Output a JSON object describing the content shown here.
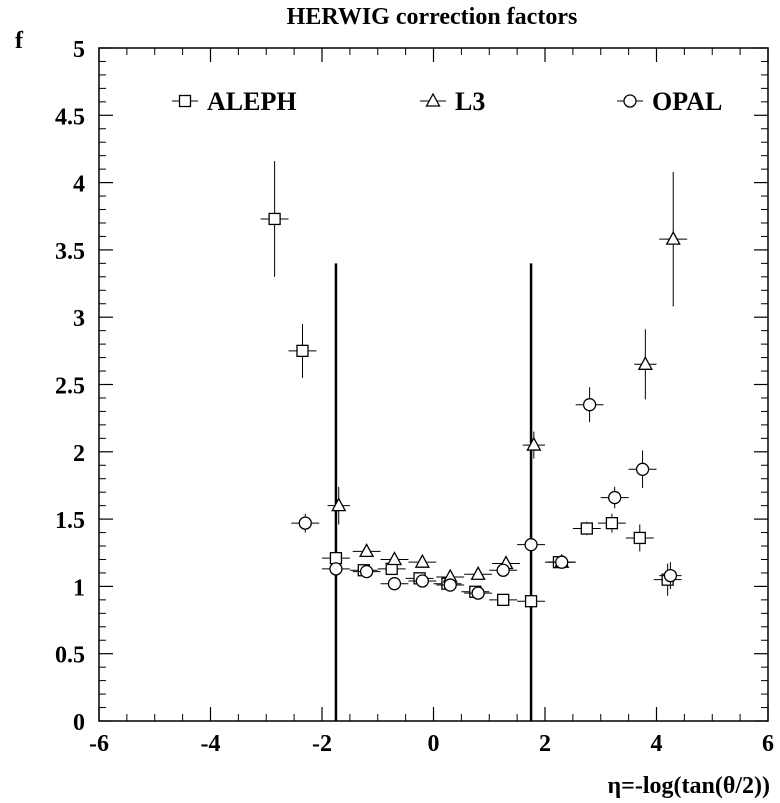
{
  "chart_data": {
    "type": "scatter",
    "title": "HERWIG correction factors",
    "xlabel": "η=-log(tan(θ/2))",
    "ylabel": "f",
    "xlim": [
      -6,
      6
    ],
    "ylim": [
      0,
      5
    ],
    "x_ticks": [
      -6,
      -4,
      -2,
      0,
      2,
      4,
      6
    ],
    "x_tick_labels": [
      "-6",
      "-4",
      "-2",
      "0",
      "2",
      "4",
      "6"
    ],
    "y_ticks": [
      0,
      0.5,
      1,
      1.5,
      2,
      2.5,
      3,
      3.5,
      4,
      4.5,
      5
    ],
    "y_tick_labels": [
      "0",
      "0.5",
      "1",
      "1.5",
      "2",
      "2.5",
      "3",
      "3.5",
      "4",
      "4.5",
      "5"
    ],
    "legend_position": "top",
    "vertical_lines": [
      {
        "x": -1.75,
        "y_top": 3.4
      },
      {
        "x": 1.75,
        "y_top": 3.4
      }
    ],
    "series": [
      {
        "name": "ALEPH",
        "marker": "square",
        "points": [
          {
            "x": -2.85,
            "y": 3.73,
            "xerr": 0.25,
            "yerr": 0.43
          },
          {
            "x": -2.35,
            "y": 2.75,
            "xerr": 0.25,
            "yerr": 0.2
          },
          {
            "x": -1.75,
            "y": 1.21,
            "xerr": 0.25,
            "yerr": 0.04
          },
          {
            "x": -1.25,
            "y": 1.12,
            "xerr": 0.25,
            "yerr": 0.03
          },
          {
            "x": -0.75,
            "y": 1.13,
            "xerr": 0.25,
            "yerr": 0.03
          },
          {
            "x": -0.25,
            "y": 1.06,
            "xerr": 0.25,
            "yerr": 0.03
          },
          {
            "x": 0.25,
            "y": 1.02,
            "xerr": 0.25,
            "yerr": 0.03
          },
          {
            "x": 0.75,
            "y": 0.96,
            "xerr": 0.25,
            "yerr": 0.03
          },
          {
            "x": 1.25,
            "y": 0.9,
            "xerr": 0.25,
            "yerr": 0.03
          },
          {
            "x": 1.75,
            "y": 0.89,
            "xerr": 0.25,
            "yerr": 0.03
          },
          {
            "x": 2.25,
            "y": 1.18,
            "xerr": 0.25,
            "yerr": 0.04
          },
          {
            "x": 2.75,
            "y": 1.43,
            "xerr": 0.25,
            "yerr": 0.05
          },
          {
            "x": 3.2,
            "y": 1.47,
            "xerr": 0.25,
            "yerr": 0.07
          },
          {
            "x": 3.7,
            "y": 1.36,
            "xerr": 0.25,
            "yerr": 0.1
          },
          {
            "x": 4.2,
            "y": 1.05,
            "xerr": 0.25,
            "yerr": 0.12
          }
        ]
      },
      {
        "name": "L3",
        "marker": "triangle",
        "points": [
          {
            "x": -1.7,
            "y": 1.6,
            "xerr": 0.2,
            "yerr": 0.14
          },
          {
            "x": -1.2,
            "y": 1.26,
            "xerr": 0.25,
            "yerr": 0.04
          },
          {
            "x": -0.7,
            "y": 1.2,
            "xerr": 0.25,
            "yerr": 0.04
          },
          {
            "x": -0.2,
            "y": 1.18,
            "xerr": 0.25,
            "yerr": 0.04
          },
          {
            "x": 0.3,
            "y": 1.07,
            "xerr": 0.25,
            "yerr": 0.04
          },
          {
            "x": 0.8,
            "y": 1.09,
            "xerr": 0.25,
            "yerr": 0.04
          },
          {
            "x": 1.3,
            "y": 1.17,
            "xerr": 0.25,
            "yerr": 0.04
          },
          {
            "x": 1.8,
            "y": 2.05,
            "xerr": 0.2,
            "yerr": 0.1
          },
          {
            "x": 2.3,
            "y": 1.18,
            "xerr": 0.25,
            "yerr": 0.04
          },
          {
            "x": 3.8,
            "y": 2.65,
            "xerr": 0.2,
            "yerr": 0.26
          },
          {
            "x": 4.3,
            "y": 3.58,
            "xerr": 0.25,
            "yerr": 0.5
          }
        ]
      },
      {
        "name": "OPAL",
        "marker": "circle",
        "points": [
          {
            "x": -2.3,
            "y": 1.47,
            "xerr": 0.25,
            "yerr": 0.07
          },
          {
            "x": -1.75,
            "y": 1.13,
            "xerr": 0.25,
            "yerr": 0.03
          },
          {
            "x": -1.2,
            "y": 1.11,
            "xerr": 0.25,
            "yerr": 0.03
          },
          {
            "x": -0.7,
            "y": 1.02,
            "xerr": 0.25,
            "yerr": 0.03
          },
          {
            "x": -0.2,
            "y": 1.04,
            "xerr": 0.25,
            "yerr": 0.03
          },
          {
            "x": 0.3,
            "y": 1.01,
            "xerr": 0.25,
            "yerr": 0.03
          },
          {
            "x": 0.8,
            "y": 0.95,
            "xerr": 0.25,
            "yerr": 0.03
          },
          {
            "x": 1.25,
            "y": 1.12,
            "xerr": 0.25,
            "yerr": 0.03
          },
          {
            "x": 1.75,
            "y": 1.31,
            "xerr": 0.25,
            "yerr": 0.04
          },
          {
            "x": 2.3,
            "y": 1.18,
            "xerr": 0.25,
            "yerr": 0.04
          },
          {
            "x": 2.8,
            "y": 2.35,
            "xerr": 0.25,
            "yerr": 0.13
          },
          {
            "x": 3.25,
            "y": 1.66,
            "xerr": 0.25,
            "yerr": 0.08
          },
          {
            "x": 3.75,
            "y": 1.87,
            "xerr": 0.25,
            "yerr": 0.14
          },
          {
            "x": 4.25,
            "y": 1.08,
            "xerr": 0.2,
            "yerr": 0.1
          }
        ]
      }
    ]
  }
}
